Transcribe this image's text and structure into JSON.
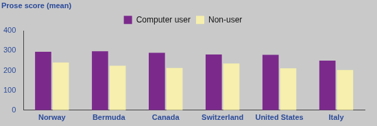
{
  "chart_data": {
    "type": "bar",
    "ylabel": "Prose score (mean)",
    "categories": [
      "Norway",
      "Bermuda",
      "Canada",
      "Switzerland",
      "United States",
      "Italy"
    ],
    "series": [
      {
        "name": "Computer user",
        "color": "#7b2a8c",
        "values": [
          294,
          297,
          289,
          281,
          279,
          250
        ]
      },
      {
        "name": "Non-user",
        "color": "#f6efad",
        "values": [
          240,
          224,
          213,
          235,
          211,
          203
        ]
      }
    ],
    "ylim": [
      0,
      400
    ],
    "yticks": [
      0,
      100,
      200,
      300,
      400
    ],
    "grid": false,
    "legend": "top"
  }
}
